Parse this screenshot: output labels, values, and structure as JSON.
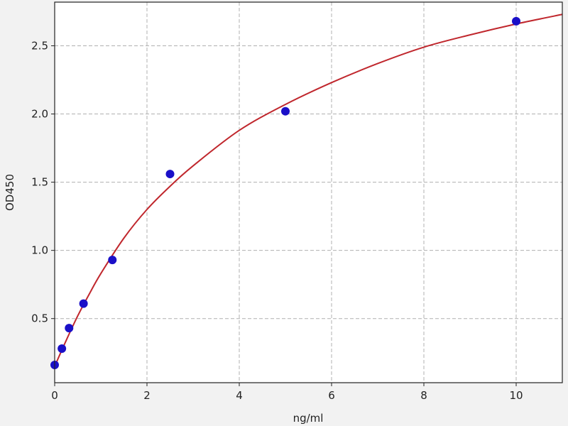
{
  "chart_data": {
    "type": "scatter",
    "title": "",
    "xlabel": "ng/ml",
    "ylabel": "OD450",
    "xlim": [
      0,
      11
    ],
    "ylim": [
      0.03,
      2.82
    ],
    "xticks": [
      0,
      2,
      4,
      6,
      8,
      10
    ],
    "yticks": [
      0.5,
      1.0,
      1.5,
      2.0,
      2.5
    ],
    "xtick_labels": [
      "0",
      "2",
      "4",
      "6",
      "8",
      "10"
    ],
    "ytick_labels": [
      "0.5",
      "1.0",
      "1.5",
      "2.0",
      "2.5"
    ],
    "grid": true,
    "colors": {
      "points": "#1a0fc8",
      "curve": "#c0272d",
      "grid": "#b0b0b0"
    },
    "series": [
      {
        "type": "scatter",
        "x": [
          0,
          0.156,
          0.312,
          0.625,
          1.25,
          2.5,
          5,
          10
        ],
        "y": [
          0.16,
          0.28,
          0.43,
          0.61,
          0.93,
          1.56,
          2.02,
          2.68
        ]
      },
      {
        "type": "line",
        "x": [
          0,
          0.25,
          0.5,
          0.75,
          1,
          1.5,
          2,
          2.5,
          3,
          4,
          5,
          6,
          7,
          8,
          9,
          10,
          11
        ],
        "y": [
          0.15,
          0.34,
          0.52,
          0.68,
          0.83,
          1.09,
          1.3,
          1.47,
          1.62,
          1.88,
          2.07,
          2.23,
          2.37,
          2.49,
          2.58,
          2.66,
          2.73
        ]
      }
    ]
  }
}
